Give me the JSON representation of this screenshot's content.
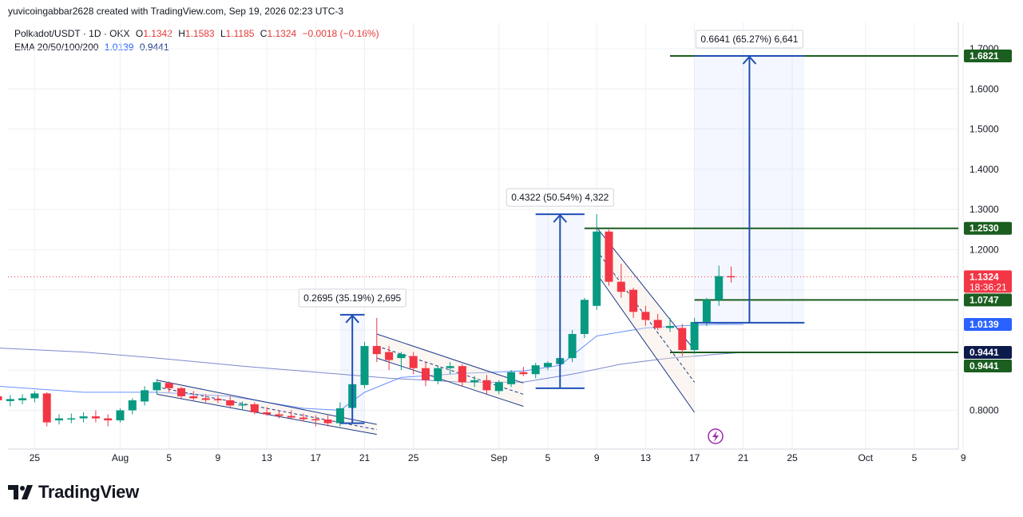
{
  "header": {
    "attribution": "yuvicoingabbar2628 created with TradingView.com, Sep 19, 2026 02:23 UTC-3"
  },
  "legend": {
    "symbol": "Polkadot/USDT · 1D · OKX",
    "open_label": "O",
    "open": "1.1342",
    "high_label": "H",
    "high": "1.1583",
    "low_label": "L",
    "low": "1.1185",
    "close_label": "C",
    "close": "1.1324",
    "change": "−0.0018 (−0.16%)",
    "ema_label": "EMA 20/50/100/200",
    "ema_v1": "1.0139",
    "ema_v2": "0.9441"
  },
  "branding": {
    "logo_text": "TradingView"
  },
  "colors": {
    "up": "#089981",
    "down": "#f23645",
    "ema_short": "#2962ff",
    "ema_long": "#1e3a8a",
    "level_line": "#1b5e20",
    "measure": "#1e4fb5"
  },
  "chart_data": {
    "type": "candlestick",
    "symbol": "Polkadot/USDT",
    "interval": "1D",
    "exchange": "OKX",
    "ylim": [
      0.73,
      1.75
    ],
    "y_ticks": [
      {
        "value": 0.8,
        "label": "0.8000"
      },
      {
        "value": 1.2,
        "label": "1.2000"
      },
      {
        "value": 1.3,
        "label": "1.3000"
      },
      {
        "value": 1.4,
        "label": "1.4000"
      },
      {
        "value": 1.5,
        "label": "1.5000"
      },
      {
        "value": 1.6,
        "label": "1.6000"
      },
      {
        "value": 1.7,
        "label": "1.7000"
      }
    ],
    "x_ticks": [
      {
        "day": -7,
        "label": "25"
      },
      {
        "day": 0,
        "label": "Aug"
      },
      {
        "day": 4,
        "label": "5"
      },
      {
        "day": 8,
        "label": "9"
      },
      {
        "day": 12,
        "label": "13"
      },
      {
        "day": 16,
        "label": "17"
      },
      {
        "day": 20,
        "label": "21"
      },
      {
        "day": 24,
        "label": "25"
      },
      {
        "day": 31,
        "label": "Sep"
      },
      {
        "day": 35,
        "label": "5"
      },
      {
        "day": 39,
        "label": "9"
      },
      {
        "day": 43,
        "label": "13"
      },
      {
        "day": 47,
        "label": "17"
      },
      {
        "day": 51,
        "label": "21"
      },
      {
        "day": 55,
        "label": "25"
      },
      {
        "day": 61,
        "label": "Oct"
      },
      {
        "day": 65,
        "label": "5"
      },
      {
        "day": 69,
        "label": "9"
      }
    ],
    "candles": [
      {
        "day": -10,
        "o": 0.835,
        "h": 0.855,
        "l": 0.82,
        "c": 0.825
      },
      {
        "day": -9,
        "o": 0.823,
        "h": 0.838,
        "l": 0.81,
        "c": 0.828
      },
      {
        "day": -8,
        "o": 0.825,
        "h": 0.84,
        "l": 0.815,
        "c": 0.83
      },
      {
        "day": -7,
        "o": 0.83,
        "h": 0.848,
        "l": 0.82,
        "c": 0.842
      },
      {
        "day": -6,
        "o": 0.842,
        "h": 0.845,
        "l": 0.76,
        "c": 0.77
      },
      {
        "day": -5,
        "o": 0.775,
        "h": 0.79,
        "l": 0.765,
        "c": 0.78
      },
      {
        "day": -4,
        "o": 0.778,
        "h": 0.792,
        "l": 0.768,
        "c": 0.78
      },
      {
        "day": -3,
        "o": 0.78,
        "h": 0.795,
        "l": 0.77,
        "c": 0.785
      },
      {
        "day": -2,
        "o": 0.785,
        "h": 0.8,
        "l": 0.77,
        "c": 0.78
      },
      {
        "day": -1,
        "o": 0.78,
        "h": 0.79,
        "l": 0.76,
        "c": 0.775
      },
      {
        "day": 0,
        "o": 0.775,
        "h": 0.805,
        "l": 0.77,
        "c": 0.8
      },
      {
        "day": 1,
        "o": 0.8,
        "h": 0.83,
        "l": 0.79,
        "c": 0.825
      },
      {
        "day": 2,
        "o": 0.822,
        "h": 0.86,
        "l": 0.812,
        "c": 0.85
      },
      {
        "day": 3,
        "o": 0.85,
        "h": 0.878,
        "l": 0.84,
        "c": 0.87
      },
      {
        "day": 4,
        "o": 0.868,
        "h": 0.872,
        "l": 0.845,
        "c": 0.855
      },
      {
        "day": 5,
        "o": 0.855,
        "h": 0.858,
        "l": 0.83,
        "c": 0.835
      },
      {
        "day": 6,
        "o": 0.835,
        "h": 0.848,
        "l": 0.825,
        "c": 0.83
      },
      {
        "day": 7,
        "o": 0.83,
        "h": 0.84,
        "l": 0.82,
        "c": 0.826
      },
      {
        "day": 8,
        "o": 0.828,
        "h": 0.838,
        "l": 0.818,
        "c": 0.825
      },
      {
        "day": 9,
        "o": 0.825,
        "h": 0.835,
        "l": 0.808,
        "c": 0.812
      },
      {
        "day": 10,
        "o": 0.812,
        "h": 0.822,
        "l": 0.8,
        "c": 0.815
      },
      {
        "day": 11,
        "o": 0.815,
        "h": 0.82,
        "l": 0.79,
        "c": 0.795
      },
      {
        "day": 12,
        "o": 0.795,
        "h": 0.808,
        "l": 0.786,
        "c": 0.79
      },
      {
        "day": 13,
        "o": 0.79,
        "h": 0.8,
        "l": 0.78,
        "c": 0.786
      },
      {
        "day": 14,
        "o": 0.786,
        "h": 0.8,
        "l": 0.78,
        "c": 0.782
      },
      {
        "day": 15,
        "o": 0.782,
        "h": 0.792,
        "l": 0.772,
        "c": 0.778
      },
      {
        "day": 16,
        "o": 0.778,
        "h": 0.788,
        "l": 0.76,
        "c": 0.775
      },
      {
        "day": 17,
        "o": 0.777,
        "h": 0.788,
        "l": 0.76,
        "c": 0.768
      },
      {
        "day": 18,
        "o": 0.768,
        "h": 0.82,
        "l": 0.76,
        "c": 0.805
      },
      {
        "day": 19,
        "o": 0.806,
        "h": 0.87,
        "l": 0.8,
        "c": 0.865
      },
      {
        "day": 20,
        "o": 0.863,
        "h": 0.97,
        "l": 0.855,
        "c": 0.96
      },
      {
        "day": 21,
        "o": 0.96,
        "h": 1.03,
        "l": 0.92,
        "c": 0.94
      },
      {
        "day": 22,
        "o": 0.945,
        "h": 0.96,
        "l": 0.9,
        "c": 0.925
      },
      {
        "day": 23,
        "o": 0.93,
        "h": 0.945,
        "l": 0.9,
        "c": 0.94
      },
      {
        "day": 24,
        "o": 0.935,
        "h": 0.945,
        "l": 0.89,
        "c": 0.905
      },
      {
        "day": 25,
        "o": 0.905,
        "h": 0.92,
        "l": 0.86,
        "c": 0.875
      },
      {
        "day": 26,
        "o": 0.873,
        "h": 0.912,
        "l": 0.865,
        "c": 0.905
      },
      {
        "day": 27,
        "o": 0.905,
        "h": 0.92,
        "l": 0.89,
        "c": 0.91
      },
      {
        "day": 28,
        "o": 0.91,
        "h": 0.915,
        "l": 0.86,
        "c": 0.87
      },
      {
        "day": 29,
        "o": 0.87,
        "h": 0.885,
        "l": 0.858,
        "c": 0.875
      },
      {
        "day": 30,
        "o": 0.875,
        "h": 0.888,
        "l": 0.84,
        "c": 0.85
      },
      {
        "day": 31,
        "o": 0.848,
        "h": 0.875,
        "l": 0.84,
        "c": 0.87
      },
      {
        "day": 32,
        "o": 0.865,
        "h": 0.9,
        "l": 0.858,
        "c": 0.895
      },
      {
        "day": 33,
        "o": 0.895,
        "h": 0.908,
        "l": 0.885,
        "c": 0.89
      },
      {
        "day": 34,
        "o": 0.89,
        "h": 0.918,
        "l": 0.88,
        "c": 0.912
      },
      {
        "day": 35,
        "o": 0.908,
        "h": 0.922,
        "l": 0.9,
        "c": 0.918
      },
      {
        "day": 36,
        "o": 0.915,
        "h": 0.94,
        "l": 0.905,
        "c": 0.93
      },
      {
        "day": 37,
        "o": 0.93,
        "h": 1.0,
        "l": 0.92,
        "c": 0.99
      },
      {
        "day": 38,
        "o": 0.99,
        "h": 1.08,
        "l": 0.98,
        "c": 1.075
      },
      {
        "day": 39,
        "o": 1.06,
        "h": 1.288,
        "l": 1.05,
        "c": 1.245
      },
      {
        "day": 40,
        "o": 1.245,
        "h": 1.25,
        "l": 1.11,
        "c": 1.12
      },
      {
        "day": 41,
        "o": 1.12,
        "h": 1.165,
        "l": 1.08,
        "c": 1.095
      },
      {
        "day": 42,
        "o": 1.1,
        "h": 1.105,
        "l": 1.03,
        "c": 1.045
      },
      {
        "day": 43,
        "o": 1.045,
        "h": 1.06,
        "l": 1.01,
        "c": 1.025
      },
      {
        "day": 44,
        "o": 1.025,
        "h": 1.04,
        "l": 1.0,
        "c": 1.005
      },
      {
        "day": 45,
        "o": 1.005,
        "h": 1.03,
        "l": 0.995,
        "c": 1.01
      },
      {
        "day": 46,
        "o": 1.005,
        "h": 1.015,
        "l": 0.935,
        "c": 0.95
      },
      {
        "day": 47,
        "o": 0.95,
        "h": 1.03,
        "l": 0.94,
        "c": 1.02
      },
      {
        "day": 48,
        "o": 1.02,
        "h": 1.08,
        "l": 1.01,
        "c": 1.075
      },
      {
        "day": 49,
        "o": 1.075,
        "h": 1.16,
        "l": 1.06,
        "c": 1.134
      },
      {
        "day": 50,
        "o": 1.134,
        "h": 1.158,
        "l": 1.118,
        "c": 1.132
      }
    ],
    "ema_short": [
      {
        "day": -10,
        "v": 0.86
      },
      {
        "day": -3,
        "v": 0.845
      },
      {
        "day": 3,
        "v": 0.845
      },
      {
        "day": 9,
        "v": 0.835
      },
      {
        "day": 15,
        "v": 0.805
      },
      {
        "day": 18,
        "v": 0.8
      },
      {
        "day": 20,
        "v": 0.845
      },
      {
        "day": 23,
        "v": 0.882
      },
      {
        "day": 28,
        "v": 0.892
      },
      {
        "day": 33,
        "v": 0.898
      },
      {
        "day": 36,
        "v": 0.912
      },
      {
        "day": 39,
        "v": 0.985
      },
      {
        "day": 43,
        "v": 1.005
      },
      {
        "day": 47,
        "v": 1.012
      },
      {
        "day": 49,
        "v": 1.014
      },
      {
        "day": 51,
        "v": 1.0139
      }
    ],
    "ema_long": [
      {
        "day": -10,
        "v": 0.955
      },
      {
        "day": -3,
        "v": 0.945
      },
      {
        "day": 3,
        "v": 0.93
      },
      {
        "day": 10,
        "v": 0.91
      },
      {
        "day": 16,
        "v": 0.895
      },
      {
        "day": 22,
        "v": 0.88
      },
      {
        "day": 28,
        "v": 0.87
      },
      {
        "day": 33,
        "v": 0.87
      },
      {
        "day": 37,
        "v": 0.89
      },
      {
        "day": 41,
        "v": 0.915
      },
      {
        "day": 45,
        "v": 0.93
      },
      {
        "day": 49,
        "v": 0.94
      },
      {
        "day": 51,
        "v": 0.9441
      }
    ],
    "channels": [
      {
        "x1": 3,
        "y1": 0.875,
        "x2": 21,
        "y2": 0.765,
        "x3": 3,
        "y3": 0.84,
        "x4": 21,
        "y4": 0.74
      },
      {
        "x1": 21,
        "y1": 0.99,
        "x2": 33,
        "y2": 0.868,
        "x3": 21,
        "y3": 0.93,
        "x4": 33,
        "y4": 0.81
      },
      {
        "x1": 39,
        "y1": 1.255,
        "x2": 47,
        "y2": 0.95,
        "x3": 39,
        "y3": 1.14,
        "x4": 47,
        "y4": 0.795
      }
    ],
    "dashed_lines": [
      {
        "x1": 3,
        "y1": 0.858,
        "x2": 21,
        "y2": 0.752
      },
      {
        "x1": 21,
        "y1": 0.96,
        "x2": 33,
        "y2": 0.84
      },
      {
        "x1": 39,
        "y1": 1.198,
        "x2": 47,
        "y2": 0.87
      }
    ],
    "horizontal_levels": [
      {
        "value": 1.6821,
        "label": "1.6821",
        "x_start": 45
      },
      {
        "value": 1.253,
        "label": "1.2530",
        "x_start": 38
      },
      {
        "value": 1.0747,
        "label": "1.0747",
        "x_start": 47
      },
      {
        "value": 0.9441,
        "label": "0.9441",
        "x_start": 45
      }
    ],
    "measures": [
      {
        "x1": 18,
        "x2": 20,
        "y_from": 0.768,
        "y_to": 1.038,
        "label": "0.2695 (35.19%) 2,695"
      },
      {
        "x1": 34,
        "x2": 38,
        "y_from": 0.855,
        "y_to": 1.288,
        "label": "0.4322 (50.54%) 4,322"
      },
      {
        "x1": 47,
        "x2": 56,
        "y_from": 1.018,
        "y_to": 1.6821,
        "label": "0.6641 (65.27%) 6,641"
      }
    ],
    "price_labels": [
      {
        "value": 1.6821,
        "text": "1.6821",
        "bg": "#1b5e20",
        "fg": "#ffffff"
      },
      {
        "value": 1.253,
        "text": "1.2530",
        "bg": "#1b5e20",
        "fg": "#ffffff"
      },
      {
        "value": 1.1324,
        "text": "1.1324",
        "sub": "18:36:21",
        "bg": "#f23645",
        "fg": "#ffffff"
      },
      {
        "value": 1.0747,
        "text": "1.0747",
        "bg": "#1b5e20",
        "fg": "#ffffff"
      },
      {
        "value": 1.0139,
        "text": "1.0139",
        "bg": "#2962ff",
        "fg": "#ffffff"
      },
      {
        "value": 0.9441,
        "text": "0.9441",
        "bg": "#0d1b4c",
        "fg": "#ffffff"
      },
      {
        "value": 0.9441,
        "text": "0.9441",
        "bg": "#1b5e20",
        "fg": "#ffffff",
        "offset": 17
      }
    ],
    "current_price": 1.1324
  }
}
